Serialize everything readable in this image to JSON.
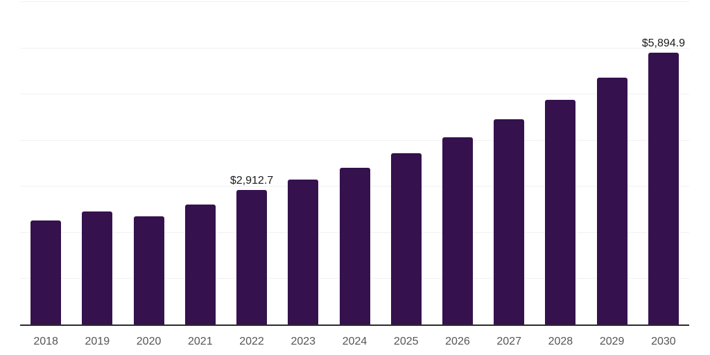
{
  "chart_data": {
    "type": "bar",
    "title": "",
    "xlabel": "",
    "ylabel": "",
    "legend": "none",
    "grid": "horizontal",
    "y_tick_labels_visible": false,
    "ylim": [
      0,
      7000
    ],
    "gridline_step": 1000,
    "categories": [
      "2018",
      "2019",
      "2020",
      "2021",
      "2022",
      "2023",
      "2024",
      "2025",
      "2026",
      "2027",
      "2028",
      "2029",
      "2030"
    ],
    "values": [
      2250,
      2450,
      2350,
      2600,
      2912.7,
      3140,
      3400,
      3710,
      4050,
      4440,
      4860,
      5350,
      5894.9
    ],
    "data_labels": [
      {
        "category": "2022",
        "text": "$2,912.7"
      },
      {
        "category": "2030",
        "text": "$5,894.9"
      }
    ],
    "colors": {
      "bar": "#35114D",
      "gridline": "#F1F1F1",
      "axis_line": "#2B2B2B",
      "x_tick_label": "#555555",
      "data_label": "#1A1A1A",
      "background": "#FFFFFF"
    }
  }
}
